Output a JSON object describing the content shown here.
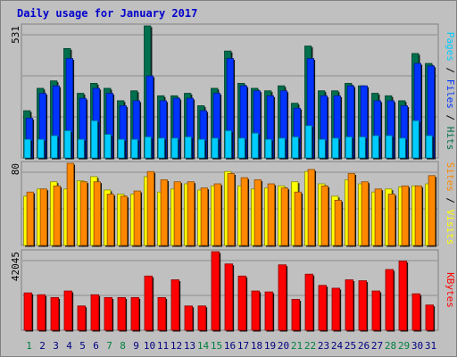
{
  "title": "Daily usage for January 2017",
  "colors": {
    "title": "#0000cc",
    "panel_bg": "#c0c0c0",
    "frame_bg": "#c0c0c0",
    "grid": "#8c8c8c",
    "hits": "#006f4d",
    "files": "#0033ff",
    "pages": "#00ccff",
    "visits": "#ffff00",
    "sites": "#ff8800",
    "kbytes": "#ff0000",
    "weekend_day": "#008040",
    "weekday_day": "#000080",
    "divider": "#000000"
  },
  "chart_data": [
    {
      "type": "bar",
      "panel": "hits_files_pages",
      "categories": [
        "1",
        "2",
        "3",
        "4",
        "5",
        "6",
        "7",
        "8",
        "9",
        "10",
        "11",
        "12",
        "13",
        "14",
        "15",
        "16",
        "17",
        "18",
        "19",
        "20",
        "21",
        "22",
        "23",
        "24",
        "25",
        "26",
        "27",
        "28",
        "29",
        "30",
        "31"
      ],
      "weekend_days": [
        "1",
        "7",
        "8",
        "14",
        "15",
        "21",
        "22",
        "28",
        "29"
      ],
      "ytick_label": "531",
      "ymax": 531,
      "side_labels": [
        "Pages",
        "Files",
        "Hits"
      ],
      "series": [
        {
          "name": "Hits",
          "color": "#006f4d",
          "values": [
            190,
            280,
            310,
            440,
            260,
            300,
            280,
            230,
            270,
            531,
            250,
            250,
            260,
            210,
            280,
            430,
            300,
            280,
            270,
            290,
            220,
            450,
            270,
            270,
            300,
            290,
            260,
            250,
            230,
            420,
            380
          ]
        },
        {
          "name": "Files",
          "color": "#0033ff",
          "values": [
            160,
            260,
            290,
            400,
            240,
            280,
            260,
            210,
            230,
            330,
            230,
            240,
            240,
            190,
            260,
            400,
            290,
            270,
            250,
            270,
            200,
            400,
            250,
            250,
            290,
            290,
            230,
            230,
            210,
            380,
            370
          ]
        },
        {
          "name": "Pages",
          "color": "#00ccff",
          "values": [
            75,
            75,
            90,
            110,
            75,
            150,
            95,
            75,
            75,
            85,
            80,
            80,
            85,
            75,
            80,
            110,
            80,
            100,
            75,
            80,
            85,
            130,
            75,
            80,
            85,
            85,
            90,
            90,
            80,
            150,
            90
          ]
        }
      ]
    },
    {
      "type": "bar",
      "panel": "sites_visits",
      "categories": [
        "1",
        "2",
        "3",
        "4",
        "5",
        "6",
        "7",
        "8",
        "9",
        "10",
        "11",
        "12",
        "13",
        "14",
        "15",
        "16",
        "17",
        "18",
        "19",
        "20",
        "21",
        "22",
        "23",
        "24",
        "25",
        "26",
        "27",
        "28",
        "29",
        "30",
        "31"
      ],
      "ytick_label": "80",
      "ymax": 80,
      "side_labels": [
        "Sites",
        "Visits"
      ],
      "series": [
        {
          "name": "Visits",
          "color": "#ffff00",
          "values": [
            48,
            55,
            62,
            55,
            63,
            67,
            54,
            50,
            50,
            67,
            52,
            55,
            60,
            54,
            58,
            72,
            58,
            55,
            56,
            58,
            62,
            72,
            60,
            48,
            64,
            60,
            52,
            55,
            57,
            58,
            60
          ]
        },
        {
          "name": "Sites",
          "color": "#ff8800",
          "values": [
            52,
            55,
            58,
            80,
            62,
            62,
            50,
            48,
            53,
            72,
            64,
            62,
            62,
            56,
            60,
            70,
            66,
            64,
            60,
            56,
            52,
            74,
            58,
            44,
            70,
            62,
            55,
            50,
            58,
            58,
            68
          ]
        }
      ]
    },
    {
      "type": "bar",
      "panel": "kbytes",
      "categories": [
        "1",
        "2",
        "3",
        "4",
        "5",
        "6",
        "7",
        "8",
        "9",
        "10",
        "11",
        "12",
        "13",
        "14",
        "15",
        "16",
        "17",
        "18",
        "19",
        "20",
        "21",
        "22",
        "23",
        "24",
        "25",
        "26",
        "27",
        "28",
        "29",
        "30",
        "31"
      ],
      "ytick_label": "42045",
      "ymax": 42045,
      "side_labels": [
        "KBytes"
      ],
      "series": [
        {
          "name": "KBytes",
          "color": "#ff0000",
          "values": [
            20000,
            19000,
            17500,
            21000,
            13000,
            19000,
            17500,
            17500,
            17500,
            29000,
            17500,
            27000,
            13000,
            13000,
            42045,
            35500,
            29000,
            21000,
            20500,
            35000,
            16500,
            30000,
            24000,
            22500,
            27000,
            26500,
            21000,
            32500,
            37000,
            19500,
            13500
          ]
        }
      ]
    }
  ]
}
